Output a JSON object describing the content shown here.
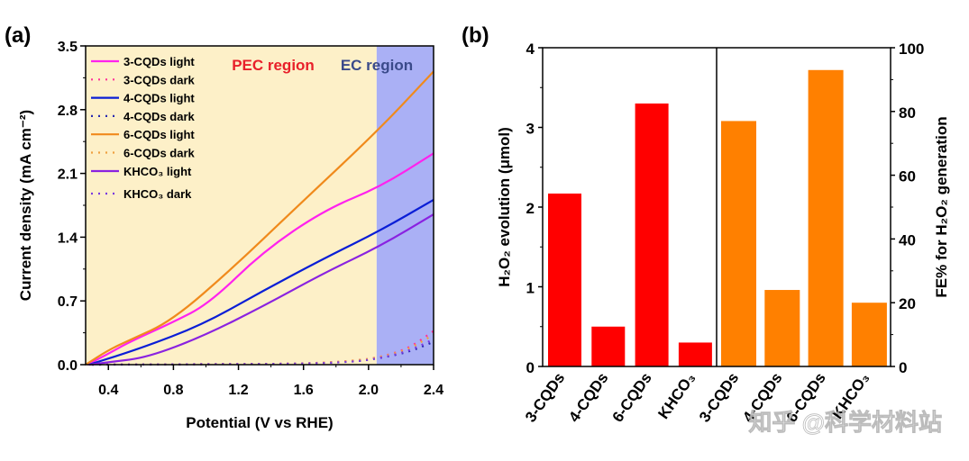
{
  "chart_data": [
    {
      "panel_label": "(a)",
      "type": "line",
      "xlabel": "Potential (V vs RHE)",
      "ylabel": "Current density (mA cm⁻²)",
      "xlim": [
        0.26,
        2.4
      ],
      "ylim": [
        0,
        3.5
      ],
      "xticks": [
        "0.4",
        "0.8",
        "1.2",
        "1.6",
        "2.0",
        "2.4"
      ],
      "yticks": [
        "0.0",
        "0.7",
        "1.4",
        "2.1",
        "2.8",
        "3.5"
      ],
      "grid": false,
      "legend": "top-left",
      "regions": [
        {
          "label": "PEC region",
          "from": 0.26,
          "to": 2.05,
          "color": "#fdf0c8",
          "label_color": "#e8202a"
        },
        {
          "label": "EC region",
          "from": 2.05,
          "to": 2.4,
          "color": "#aab0f5",
          "label_color": "#3a4a8a"
        }
      ],
      "series": [
        {
          "name": "3-CQDs light",
          "color": "#ff22ee",
          "style": "solid",
          "x": [
            0.27,
            0.4,
            0.53,
            0.79,
            1.02,
            1.35,
            1.73,
            2.07,
            2.4
          ],
          "y": [
            0,
            0.12,
            0.25,
            0.46,
            0.67,
            1.24,
            1.7,
            1.95,
            2.32
          ]
        },
        {
          "name": "3-CQDs dark",
          "color": "#ff3399",
          "style": "dotted",
          "x": [
            0.3,
            1.0,
            1.6,
            1.9,
            2.07,
            2.25,
            2.4
          ],
          "y": [
            0,
            0.005,
            0.01,
            0.04,
            0.08,
            0.18,
            0.37
          ]
        },
        {
          "name": "4-CQDs light",
          "color": "#0a1ed6",
          "style": "solid",
          "x": [
            0.28,
            0.6,
            0.98,
            1.35,
            1.73,
            2.07,
            2.4
          ],
          "y": [
            0,
            0.18,
            0.44,
            0.81,
            1.17,
            1.47,
            1.81
          ]
        },
        {
          "name": "4-CQDs dark",
          "color": "#2a2ab0",
          "style": "dotted",
          "x": [
            0.3,
            1.0,
            1.6,
            1.9,
            2.07,
            2.25,
            2.4
          ],
          "y": [
            0,
            0.005,
            0.01,
            0.03,
            0.07,
            0.14,
            0.25
          ]
        },
        {
          "name": "6-CQDs light",
          "color": "#f08a1c",
          "style": "solid",
          "x": [
            0.26,
            0.4,
            0.53,
            0.79,
            1.17,
            1.54,
            2.07,
            2.4
          ],
          "y": [
            0,
            0.16,
            0.27,
            0.48,
            1.07,
            1.7,
            2.59,
            3.22
          ]
        },
        {
          "name": "6-CQDs dark",
          "color": "#f0a040",
          "style": "dotted",
          "x": [
            0.3,
            1.0,
            1.6,
            1.9,
            2.07,
            2.25,
            2.4
          ],
          "y": [
            0,
            0.005,
            0.01,
            0.04,
            0.08,
            0.17,
            0.33
          ]
        },
        {
          "name": "KHCO₃ light",
          "color": "#8a22e0",
          "style": "solid",
          "x": [
            0.28,
            0.42,
            0.64,
            0.98,
            1.35,
            1.73,
            2.07,
            2.4
          ],
          "y": [
            0,
            0.03,
            0.08,
            0.31,
            0.64,
            1.01,
            1.3,
            1.65
          ]
        },
        {
          "name": "KHCO₃ dark",
          "color": "#7a3ae0",
          "style": "dotted",
          "x": [
            0.3,
            1.0,
            1.6,
            1.9,
            2.07,
            2.25,
            2.4
          ],
          "y": [
            0,
            0.005,
            0.01,
            0.03,
            0.07,
            0.15,
            0.28
          ]
        }
      ]
    },
    {
      "panel_label": "(b)",
      "type": "bar",
      "categories": [
        "3-CQDs",
        "4-CQDs",
        "6-CQDs",
        "KHCO₃"
      ],
      "left": {
        "ylabel": "H₂O₂ evolution (μmol)",
        "ylim": [
          0,
          4
        ],
        "yticks": [
          "0",
          "1",
          "2",
          "3",
          "4"
        ],
        "values": [
          2.17,
          0.5,
          3.3,
          0.3
        ],
        "color": "#ff0000"
      },
      "right": {
        "ylabel": "FE% for H₂O₂ generation",
        "ylim": [
          0,
          100
        ],
        "yticks": [
          "0",
          "20",
          "40",
          "60",
          "80",
          "100"
        ],
        "values": [
          77,
          24,
          93,
          20
        ],
        "color": "#ff8000"
      }
    }
  ],
  "watermark": "知乎 @科学材料站"
}
